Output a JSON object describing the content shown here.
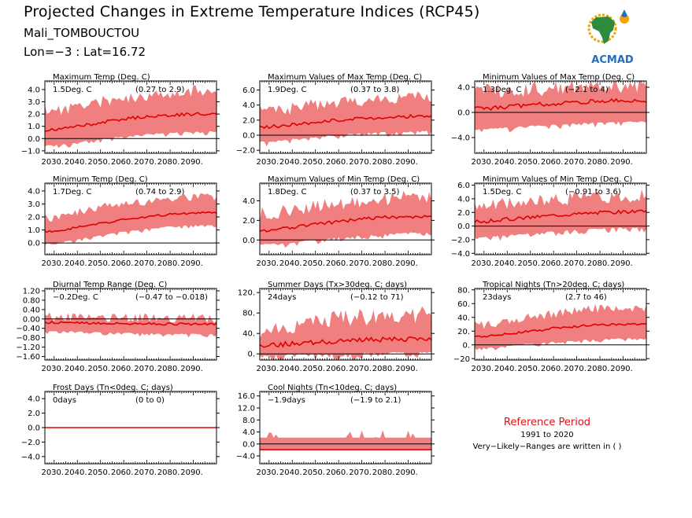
{
  "header": {
    "title": "Projected Changes in Extreme Temperature Indices (RCP45)",
    "station": "Mali_TOMBOUCTOU",
    "coords": "Lon=−3 : Lat=16.72"
  },
  "logo": {
    "text": "ACMAD",
    "icon": "africa-map-icon",
    "colors": [
      "#2e8b3e",
      "#f5a300",
      "#1f6fbf",
      "#c0392b"
    ]
  },
  "reference": {
    "title": "Reference Period",
    "years": "1991 to 2020",
    "note": "Very−Likely−Ranges are written in ( )"
  },
  "colors": {
    "band": "#f08080",
    "line": "#e00000",
    "zero": "#000000"
  },
  "chart_data": [
    {
      "type": "area",
      "title": "Maximum Temp (Deg. C)",
      "value_label": "1.5Deg. C",
      "range_label": "(0.27 to 2.9)",
      "x": [
        2030,
        2040,
        2050,
        2060,
        2070,
        2080,
        2090
      ],
      "xticklabels": [
        "2030.",
        "2040.",
        "2050.",
        "2060.",
        "2070.",
        "2080.",
        "2090."
      ],
      "xlim": [
        2026,
        2100
      ],
      "ylim": [
        -1.2,
        4.7
      ],
      "yticks": [
        -1.0,
        0.0,
        1.0,
        2.0,
        3.0,
        4.0
      ],
      "yticklabels": [
        "−1.0",
        "0.0",
        "1.0",
        "2.0",
        "3.0",
        "4.0"
      ],
      "median": [
        0.7,
        1.0,
        1.3,
        1.6,
        1.8,
        1.9,
        2.0
      ],
      "lower": [
        -0.5,
        -0.3,
        0.0,
        0.2,
        0.4,
        0.5,
        0.6
      ],
      "upper": [
        2.3,
        2.6,
        3.0,
        3.3,
        3.5,
        3.7,
        3.9
      ],
      "noise": 0.5,
      "seed": 11
    },
    {
      "type": "area",
      "title": "Maximum Values of Max Temp (Deg. C)",
      "value_label": "1.9Deg. C",
      "range_label": "(0.37 to 3.8)",
      "x": [
        2030,
        2040,
        2050,
        2060,
        2070,
        2080,
        2090
      ],
      "xticklabels": [
        "2030.",
        "2040.",
        "2050.",
        "2060.",
        "2070.",
        "2080.",
        "2090."
      ],
      "xlim": [
        2026,
        2100
      ],
      "ylim": [
        -2.4,
        7.2
      ],
      "yticks": [
        -2.0,
        0.0,
        2.0,
        4.0,
        6.0
      ],
      "yticklabels": [
        "−2.0",
        "0.0",
        "2.0",
        "4.0",
        "6.0"
      ],
      "median": [
        1.1,
        1.4,
        1.7,
        2.0,
        2.2,
        2.4,
        2.5
      ],
      "lower": [
        -0.8,
        -0.5,
        -0.2,
        0.1,
        0.3,
        0.5,
        0.6
      ],
      "upper": [
        3.2,
        3.6,
        4.0,
        4.4,
        4.7,
        5.0,
        5.2
      ],
      "noise": 0.9,
      "seed": 23
    },
    {
      "type": "area",
      "title": "Minimum Values of Max Temp (Deg. C)",
      "value_label": "1.3Deg. C",
      "range_label": "(−2.1 to 4)",
      "x": [
        2030,
        2040,
        2050,
        2060,
        2070,
        2080,
        2090
      ],
      "xticklabels": [
        "2030.",
        "2040.",
        "2050.",
        "2060.",
        "2070.",
        "2080.",
        "2090."
      ],
      "xlim": [
        2026,
        2100
      ],
      "ylim": [
        -6.5,
        5.0
      ],
      "yticks": [
        -4.0,
        0.0,
        4.0
      ],
      "yticklabels": [
        "−4.0",
        "0.0",
        "4.0"
      ],
      "median": [
        0.6,
        0.9,
        1.2,
        1.4,
        1.6,
        1.8,
        1.9
      ],
      "lower": [
        -2.6,
        -2.3,
        -2.1,
        -1.9,
        -1.7,
        -1.5,
        -1.4
      ],
      "upper": [
        3.3,
        3.5,
        3.8,
        4.0,
        4.2,
        4.3,
        4.4
      ],
      "noise": 1.3,
      "seed": 37
    },
    {
      "type": "area",
      "title": "Minimum Temp (Deg. C)",
      "value_label": "1.7Deg. C",
      "range_label": "(0.74 to 2.9)",
      "x": [
        2030,
        2040,
        2050,
        2060,
        2070,
        2080,
        2090
      ],
      "xticklabels": [
        "2030.",
        "2040.",
        "2050.",
        "2060.",
        "2070.",
        "2080.",
        "2090."
      ],
      "xlim": [
        2026,
        2100
      ],
      "ylim": [
        -0.9,
        4.6
      ],
      "yticks": [
        0.0,
        1.0,
        2.0,
        3.0,
        4.0
      ],
      "yticklabels": [
        "0.0",
        "1.0",
        "2.0",
        "3.0",
        "4.0"
      ],
      "median": [
        0.9,
        1.2,
        1.5,
        1.8,
        2.0,
        2.2,
        2.3
      ],
      "lower": [
        0.0,
        0.3,
        0.6,
        0.9,
        1.1,
        1.3,
        1.4
      ],
      "upper": [
        1.9,
        2.3,
        2.7,
        3.0,
        3.2,
        3.4,
        3.5
      ],
      "noise": 0.35,
      "seed": 41
    },
    {
      "type": "area",
      "title": "Maximum Values of Min Temp (Deg. C)",
      "value_label": "1.8Deg. C",
      "range_label": "(0.37 to 3.5)",
      "x": [
        2030,
        2040,
        2050,
        2060,
        2070,
        2080,
        2090
      ],
      "xticklabels": [
        "2030.",
        "2040.",
        "2050.",
        "2060.",
        "2070.",
        "2080.",
        "2090."
      ],
      "xlim": [
        2026,
        2100
      ],
      "ylim": [
        -1.5,
        5.8
      ],
      "yticks": [
        0.0,
        2.0,
        4.0
      ],
      "yticklabels": [
        "0.0",
        "2.0",
        "4.0"
      ],
      "median": [
        1.0,
        1.3,
        1.6,
        1.9,
        2.1,
        2.3,
        2.4
      ],
      "lower": [
        -0.4,
        -0.2,
        0.1,
        0.3,
        0.5,
        0.7,
        0.8
      ],
      "upper": [
        2.7,
        3.0,
        3.4,
        3.7,
        4.0,
        4.2,
        4.4
      ],
      "noise": 0.7,
      "seed": 53
    },
    {
      "type": "area",
      "title": "Minimum Values of Min Temp (Deg. C)",
      "value_label": "1.5Deg. C",
      "range_label": "(−0.91 to 3.6)",
      "x": [
        2030,
        2040,
        2050,
        2060,
        2070,
        2080,
        2090
      ],
      "xticklabels": [
        "2030.",
        "2040.",
        "2050.",
        "2060.",
        "2070.",
        "2080.",
        "2090."
      ],
      "xlim": [
        2026,
        2100
      ],
      "ylim": [
        -4.2,
        6.3
      ],
      "yticks": [
        -4.0,
        -2.0,
        0.0,
        2.0,
        4.0,
        6.0
      ],
      "yticklabels": [
        "−4.0",
        "−2.0",
        "0.0",
        "2.0",
        "4.0",
        "6.0"
      ],
      "median": [
        0.7,
        1.0,
        1.3,
        1.6,
        1.8,
        2.0,
        2.1
      ],
      "lower": [
        -1.6,
        -1.3,
        -1.0,
        -0.7,
        -0.5,
        -0.3,
        -0.2
      ],
      "upper": [
        3.0,
        3.3,
        3.6,
        3.9,
        4.1,
        4.3,
        4.4
      ],
      "noise": 1.0,
      "seed": 67
    },
    {
      "type": "area",
      "title": "Diurnal Temp Range (Deg. C)",
      "value_label": "−0.2Deg. C",
      "range_label": "(−0.47 to −0.018)",
      "x": [
        2030,
        2040,
        2050,
        2060,
        2070,
        2080,
        2090
      ],
      "xticklabels": [
        "2030.",
        "2040.",
        "2050.",
        "2060.",
        "2070.",
        "2080.",
        "2090."
      ],
      "xlim": [
        2026,
        2100
      ],
      "ylim": [
        -1.75,
        1.3
      ],
      "yticks": [
        -1.6,
        -1.2,
        -0.8,
        -0.4,
        0.0,
        0.4,
        0.8,
        1.2
      ],
      "yticklabels": [
        "−1.60",
        "−1.20",
        "−0.80",
        "−0.40",
        "0.00",
        "0.40",
        "0.80",
        "1.20"
      ],
      "median": [
        -0.15,
        -0.17,
        -0.18,
        -0.2,
        -0.21,
        -0.22,
        -0.22
      ],
      "lower": [
        -0.5,
        -0.52,
        -0.55,
        -0.58,
        -0.6,
        -0.62,
        -0.63
      ],
      "upper": [
        0.1,
        0.09,
        0.08,
        0.06,
        0.05,
        0.04,
        0.03
      ],
      "noise": 0.2,
      "seed": 79
    },
    {
      "type": "area",
      "title": "Summer Days (Tx>30deg. C; days)",
      "value_label": "24days",
      "range_label": "(−0.12 to 71)",
      "x": [
        2030,
        2040,
        2050,
        2060,
        2070,
        2080,
        2090
      ],
      "xticklabels": [
        "2030.",
        "2040.",
        "2050.",
        "2060.",
        "2070.",
        "2080.",
        "2090."
      ],
      "xlim": [
        2026,
        2100
      ],
      "ylim": [
        -12,
        128
      ],
      "yticks": [
        0,
        40,
        80,
        120
      ],
      "yticklabels": [
        "0.",
        "40.",
        "80.",
        "120."
      ],
      "median": [
        17,
        20,
        22,
        25,
        27,
        28,
        29
      ],
      "lower": [
        -2,
        0,
        1,
        2,
        3,
        4,
        4
      ],
      "upper": [
        45,
        55,
        62,
        68,
        72,
        75,
        77
      ],
      "noise": 18,
      "seed": 83
    },
    {
      "type": "area",
      "title": "Tropical Nights (Tn>20deg. C; days)",
      "value_label": "23days",
      "range_label": "(2.7 to 46)",
      "x": [
        2030,
        2040,
        2050,
        2060,
        2070,
        2080,
        2090
      ],
      "xticklabels": [
        "2030.",
        "2040.",
        "2050.",
        "2060.",
        "2070.",
        "2080.",
        "2090."
      ],
      "xlim": [
        2026,
        2100
      ],
      "ylim": [
        -22,
        82
      ],
      "yticks": [
        -20,
        0,
        20,
        40,
        60,
        80
      ],
      "yticklabels": [
        "−20",
        "0.",
        "20.",
        "40.",
        "60.",
        "80."
      ],
      "median": [
        12,
        16,
        20,
        24,
        27,
        29,
        30
      ],
      "lower": [
        -4,
        -1,
        2,
        5,
        7,
        9,
        10
      ],
      "upper": [
        30,
        35,
        41,
        46,
        50,
        53,
        55
      ],
      "noise": 7,
      "seed": 97
    },
    {
      "type": "area",
      "title": "Frost Days (Tn<0deg. C; days)",
      "value_label": "0days",
      "range_label": "(0 to 0)",
      "x": [
        2030,
        2040,
        2050,
        2060,
        2070,
        2080,
        2090
      ],
      "xticklabels": [
        "2030.",
        "2040.",
        "2050.",
        "2060.",
        "2070.",
        "2080.",
        "2090."
      ],
      "xlim": [
        2026,
        2100
      ],
      "ylim": [
        -5.0,
        5.0
      ],
      "yticks": [
        -4.0,
        -2.0,
        0.0,
        2.0,
        4.0
      ],
      "yticklabels": [
        "−4.0",
        "−2.0",
        "0.0",
        "2.0",
        "4.0"
      ],
      "median": [
        0,
        0,
        0,
        0,
        0,
        0,
        0
      ],
      "lower": [
        0,
        0,
        0,
        0,
        0,
        0,
        0
      ],
      "upper": [
        0,
        0,
        0,
        0,
        0,
        0,
        0
      ],
      "noise": 0,
      "seed": 3
    },
    {
      "type": "area",
      "title": "Cool Nights (Tn<10deg. C; days)",
      "value_label": "−1.9days",
      "range_label": "(−1.9 to 2.1)",
      "x": [
        2030,
        2040,
        2050,
        2060,
        2070,
        2080,
        2090
      ],
      "xticklabels": [
        "2030.",
        "2040.",
        "2050.",
        "2060.",
        "2070.",
        "2080.",
        "2090."
      ],
      "xlim": [
        2026,
        2100
      ],
      "ylim": [
        -6.6,
        17.5
      ],
      "yticks": [
        -4.0,
        0.0,
        4.0,
        8.0,
        12.0,
        16.0
      ],
      "yticklabels": [
        "−4.0",
        "0.0",
        "4.0",
        "8.0",
        "12.0",
        "16.0"
      ],
      "median": [
        -1.9,
        -1.9,
        -1.9,
        -1.9,
        -1.9,
        -1.9,
        -1.9
      ],
      "lower": [
        -1.9,
        -1.9,
        -1.9,
        -1.9,
        -1.9,
        -1.9,
        -1.9
      ],
      "upper": [
        2.1,
        2.1,
        2.1,
        2.1,
        2.1,
        2.1,
        2.1
      ],
      "noise": 0,
      "spikes": true,
      "seed": 5
    }
  ]
}
